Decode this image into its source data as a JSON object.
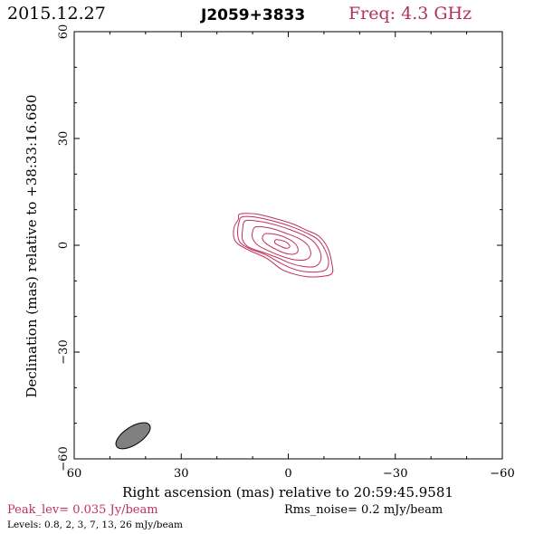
{
  "header": {
    "date": "2015.12.27",
    "source": "J2059+3833",
    "freq": "Freq: 4.3 GHz"
  },
  "footer": {
    "peak": "Peak_lev=  0.035 Jy/beam",
    "rms": "Rms_noise=   0.2 mJy/beam",
    "levels": "Levels: 0.8,    2,    3,    7,    13,   26  mJy/beam"
  },
  "colors": {
    "contour": "#c0305a",
    "beam_fill": "#808080",
    "header_accent": "#b03060"
  },
  "chart_data": {
    "type": "contour",
    "xlabel": "Right ascension (mas) relative to 20:59:45.9581",
    "ylabel": "Declination (mas) relative to +38:33:16.680",
    "xlim": [
      60,
      -60
    ],
    "ylim": [
      -60,
      60
    ],
    "x_ticks": [
      60,
      30,
      0,
      -30,
      -60
    ],
    "y_ticks": [
      -60,
      -30,
      0,
      30,
      60
    ],
    "x_tick_labels": [
      "60",
      "30",
      "0",
      "−30",
      "−60"
    ],
    "y_tick_labels": [
      "−60",
      "−30",
      "0",
      "30",
      "60"
    ],
    "peak_jy_per_beam": 0.035,
    "rms_noise_mjy_per_beam": 0.2,
    "contour_levels_mjy_per_beam": [
      0.8,
      2,
      3,
      7,
      13,
      26
    ],
    "contours": [
      [
        [
          13.5,
          8.8
        ],
        [
          9,
          8.8
        ],
        [
          4,
          7.6
        ],
        [
          -1,
          6.1
        ],
        [
          -5,
          4.3
        ],
        [
          -8.5,
          2.6
        ],
        [
          -11,
          -0.6
        ],
        [
          -12.2,
          -5
        ],
        [
          -12.2,
          -8
        ],
        [
          -8.8,
          -8.8
        ],
        [
          -5,
          -8.8
        ],
        [
          -1,
          -7.9
        ],
        [
          2,
          -6.7
        ],
        [
          6,
          -3.7
        ],
        [
          11,
          -1.4
        ],
        [
          14,
          0.3
        ],
        [
          15.2,
          2
        ],
        [
          15.2,
          5
        ],
        [
          14,
          7.3
        ]
      ],
      [
        [
          12.8,
          8
        ],
        [
          8.5,
          7.8
        ],
        [
          3.8,
          6.7
        ],
        [
          -1,
          5.2
        ],
        [
          -5,
          3.5
        ],
        [
          -8.2,
          1.7
        ],
        [
          -10.2,
          -1.1
        ],
        [
          -11.3,
          -4.5
        ],
        [
          -10.5,
          -6.9
        ],
        [
          -7.8,
          -7.5
        ],
        [
          -4,
          -7.3
        ],
        [
          -0.5,
          -6.3
        ],
        [
          2.5,
          -4.8
        ],
        [
          6.5,
          -2.6
        ],
        [
          11,
          -0.9
        ],
        [
          13.5,
          0.8
        ],
        [
          14.2,
          3.3
        ],
        [
          13.8,
          6.5
        ]
      ],
      [
        [
          12,
          6.9
        ],
        [
          8,
          6.7
        ],
        [
          3.5,
          5.7
        ],
        [
          -1,
          4.2
        ],
        [
          -5,
          2.5
        ],
        [
          -7.5,
          0.6
        ],
        [
          -9,
          -2.1
        ],
        [
          -9,
          -4.5
        ],
        [
          -7.3,
          -6
        ],
        [
          -4,
          -5.9
        ],
        [
          -0.5,
          -5
        ],
        [
          3,
          -3.5
        ],
        [
          7,
          -2
        ],
        [
          11,
          -0.6
        ],
        [
          12.8,
          1.5
        ],
        [
          12.8,
          4.5
        ]
      ],
      [
        [
          9,
          5.2
        ],
        [
          5,
          4.8
        ],
        [
          1,
          3.5
        ],
        [
          -3,
          1.9
        ],
        [
          -5.5,
          0
        ],
        [
          -6.3,
          -2.5
        ],
        [
          -5,
          -4
        ],
        [
          -2,
          -4.1
        ],
        [
          1.5,
          -3.2
        ],
        [
          5,
          -1.8
        ],
        [
          8.5,
          0
        ],
        [
          10,
          2
        ],
        [
          10,
          3.8
        ]
      ],
      [
        [
          6,
          3.3
        ],
        [
          2.5,
          2.8
        ],
        [
          -0.5,
          1.5
        ],
        [
          -2.3,
          0
        ],
        [
          -2.7,
          -1.7
        ],
        [
          -1.5,
          -2.5
        ],
        [
          1,
          -2.2
        ],
        [
          3.5,
          -1.1
        ],
        [
          6,
          0.3
        ],
        [
          7.2,
          1.7
        ],
        [
          7,
          2.8
        ]
      ],
      [
        [
          3.2,
          1.6
        ],
        [
          1,
          1.1
        ],
        [
          -0.2,
          0.2
        ],
        [
          -0.3,
          -0.6
        ],
        [
          0.8,
          -0.8
        ],
        [
          2.3,
          -0.2
        ],
        [
          3.6,
          0.5
        ],
        [
          3.8,
          1.2
        ]
      ]
    ],
    "beam": {
      "center": [
        43.5,
        -53.5
      ],
      "major_mas": 11,
      "minor_mas": 5,
      "position_angle_deg": 57
    }
  }
}
